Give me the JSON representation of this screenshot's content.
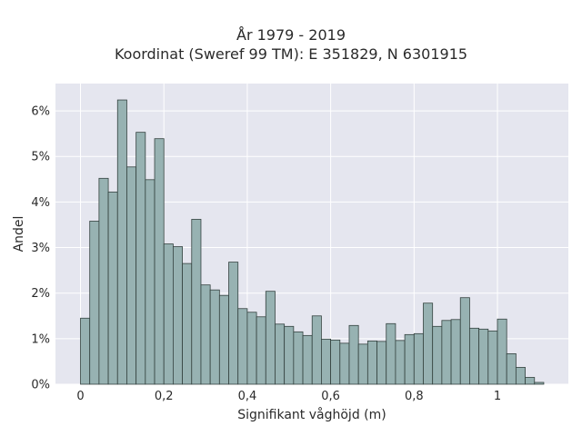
{
  "chart_data": {
    "type": "bar",
    "title": "År 1979 - 2019",
    "subtitle": "Koordinat (Sweref 99 TM): E 351829, N 6301915",
    "xlabel": "Signifikant våghöjd (m)",
    "ylabel": "Andel",
    "xlim": [
      -0.06,
      1.17
    ],
    "ylim": [
      0,
      6.6
    ],
    "x_ticks": [
      0,
      0.2,
      0.4,
      0.6,
      0.8,
      1
    ],
    "x_tick_labels": [
      "0",
      "0,2",
      "0,4",
      "0,6",
      "0,8",
      "1"
    ],
    "y_ticks": [
      0,
      1,
      2,
      3,
      4,
      5,
      6
    ],
    "y_tick_labels": [
      "0%",
      "1%",
      "2%",
      "3%",
      "4%",
      "5%",
      "6%"
    ],
    "grid": true,
    "bin_start": 0,
    "bin_width": 0.02222,
    "values": [
      1.45,
      3.58,
      4.52,
      4.22,
      6.24,
      4.77,
      5.53,
      4.49,
      5.39,
      3.08,
      3.02,
      2.65,
      3.62,
      2.18,
      2.07,
      1.95,
      2.68,
      1.66,
      1.58,
      1.48,
      2.04,
      1.32,
      1.27,
      1.15,
      1.07,
      1.5,
      0.99,
      0.97,
      0.9,
      1.29,
      0.88,
      0.95,
      0.94,
      1.33,
      0.96,
      1.09,
      1.11,
      1.78,
      1.27,
      1.4,
      1.42,
      1.9,
      1.23,
      1.21,
      1.17,
      1.43,
      0.67,
      0.37,
      0.15,
      0.04
    ],
    "colors": {
      "bar_fill": "#97b2b2",
      "bar_edge": "#34423f",
      "plot_bg": "#e5e6ef",
      "grid": "#ffffff"
    }
  }
}
